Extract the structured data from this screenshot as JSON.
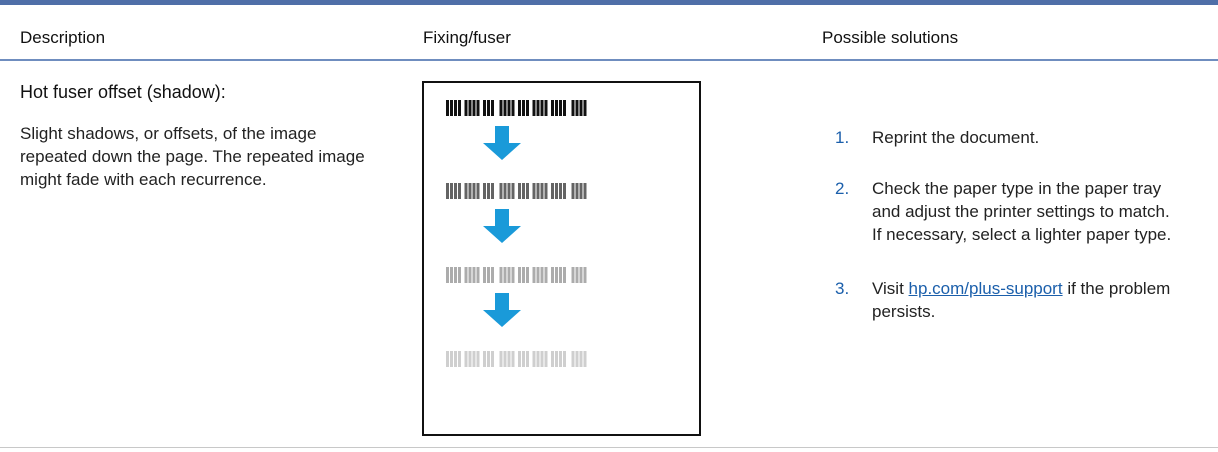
{
  "header": {
    "columns": [
      "Description",
      "Fixing/fuser",
      "Possible solutions"
    ]
  },
  "table": {
    "rows": [
      {
        "title": "Hot fuser offset (shadow):",
        "description": "Slight shadows, or offsets, of the image repeated down the page. The repeated image might fade with each recurrence.",
        "solutions": [
          {
            "number": "1.",
            "text": "Reprint the document."
          },
          {
            "number": "2.",
            "text": "Check the paper type in the paper tray and adjust the printer settings to match. If necessary, select a lighter paper type."
          },
          {
            "number": "3.",
            "text_before": "Visit",
            "link": "hp.com/plus-support",
            "text_after": "if the problem persists."
          }
        ]
      }
    ]
  }
}
